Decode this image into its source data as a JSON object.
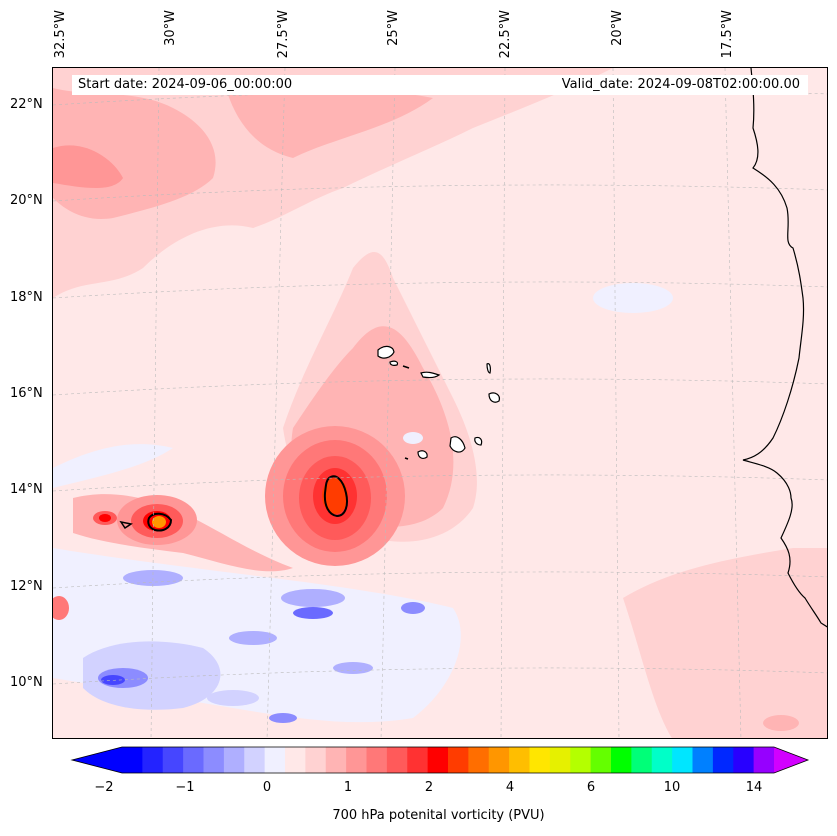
{
  "map": {
    "lon_labels": [
      "32.5°W",
      "30°W",
      "27.5°W",
      "25°W",
      "22.5°W",
      "20°W",
      "17.5°W"
    ],
    "lat_labels": [
      "22°N",
      "20°N",
      "18°N",
      "16°N",
      "14°N",
      "12°N",
      "10°N"
    ],
    "start_date": "Start date: 2024-09-06_00:00:00",
    "valid_date": "Valid_date: 2024-09-08T02:00:00.00",
    "background_color": "#ffe8e8"
  },
  "colorbar": {
    "label": "700 hPa potenital vorticity (PVU)",
    "ticks": [
      "−2",
      "−1",
      "0",
      "1",
      "2",
      "4",
      "6",
      "10",
      "14"
    ],
    "colors": [
      "#0000ff",
      "#2323ff",
      "#4646ff",
      "#6a6aff",
      "#8c8cff",
      "#afafff",
      "#d2d2ff",
      "#f0f0ff",
      "#ffe8e8",
      "#ffd2d2",
      "#ffb4b4",
      "#ff9696",
      "#ff7878",
      "#ff5a5a",
      "#ff3232",
      "#ff0000",
      "#ff3c00",
      "#ff6e00",
      "#ff9600",
      "#ffbe00",
      "#ffe600",
      "#e6f000",
      "#b4ff00",
      "#64ff00",
      "#00ff00",
      "#00ff78",
      "#00ffc8",
      "#00e6ff",
      "#0080ff",
      "#0028ff",
      "#2800ff",
      "#9600ff"
    ],
    "extend_low_color": "#0000ff",
    "extend_high_color": "#d200ff"
  }
}
